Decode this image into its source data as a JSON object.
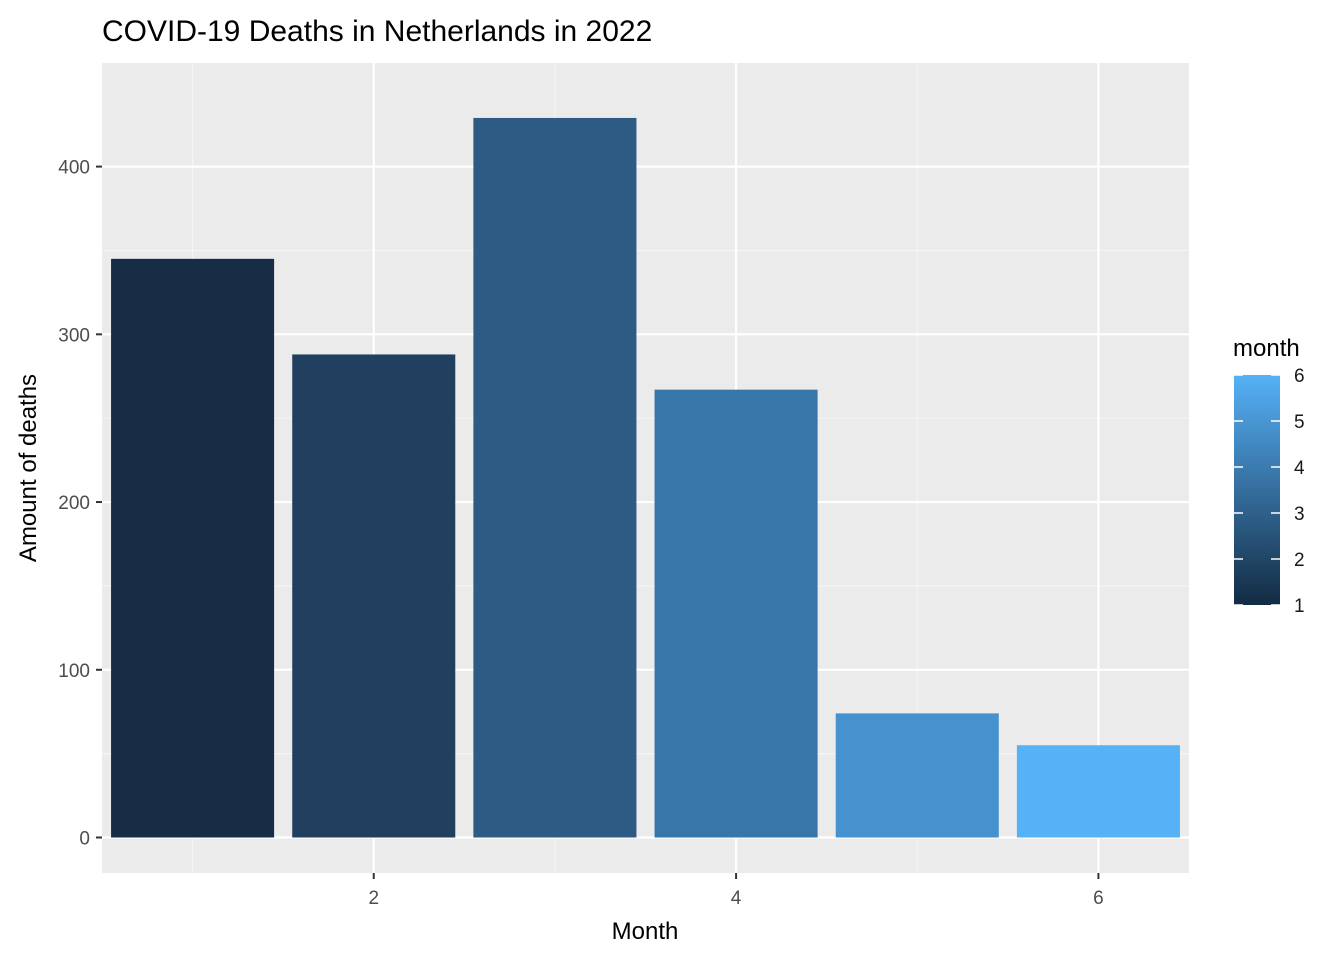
{
  "chart_data": {
    "type": "bar",
    "title": "COVID-19 Deaths in Netherlands in 2022",
    "xlabel": "Month",
    "ylabel": "Amount of deaths",
    "x": [
      1,
      2,
      3,
      4,
      5,
      6
    ],
    "values": [
      345,
      288,
      429,
      267,
      74,
      55
    ],
    "xlim": [
      0.5,
      6.5
    ],
    "ylim": [
      0,
      440
    ],
    "x_ticks": [
      2,
      4,
      6
    ],
    "x_tick_labels": [
      "2",
      "4",
      "6"
    ],
    "y_ticks": [
      0,
      100,
      200,
      300,
      400
    ],
    "y_tick_labels": [
      "0",
      "100",
      "200",
      "300",
      "400"
    ],
    "grid": true,
    "panel_background": "#ebebeb",
    "bar_colors": [
      "#172d45",
      "#213f5f",
      "#2d5b84",
      "#3875a8",
      "#4692cf",
      "#56b1f7"
    ],
    "legend": {
      "title": "month",
      "position": "right",
      "type": "colorbar",
      "low_color": "#132b43",
      "high_color": "#56b1f7",
      "range": [
        1,
        6
      ],
      "ticks": [
        1,
        2,
        3,
        4,
        5,
        6
      ],
      "tick_labels": [
        "1",
        "2",
        "3",
        "4",
        "5",
        "6"
      ]
    }
  }
}
